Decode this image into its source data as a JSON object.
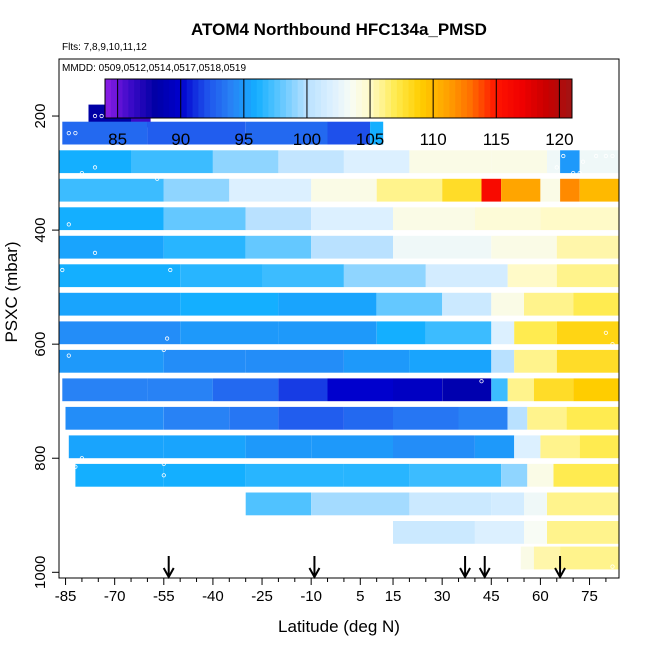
{
  "chart_data": {
    "type": "heatmap",
    "title": "ATOM4 Northbound HFC134a_PMSD",
    "subtitle1": "Flts: 7,8,9,10,11,12",
    "subtitle2": "MMDD: 0509,0512,0514,0517,0518,0519",
    "xlabel": "Latitude (deg N)",
    "ylabel": "PSXC (mbar)",
    "xlim": [
      -87,
      84
    ],
    "ylim": [
      1010,
      100
    ],
    "x_ticks": [
      -85,
      -70,
      -55,
      -40,
      -25,
      -10,
      5,
      15,
      30,
      45,
      60,
      75
    ],
    "y_ticks": [
      200,
      400,
      600,
      800,
      1000
    ],
    "colorbar": {
      "range": [
        84,
        121
      ],
      "ticks": [
        85,
        90,
        95,
        100,
        105,
        110,
        115,
        120
      ]
    },
    "flight_marker_latitudes": [
      -53.5,
      -9,
      37,
      43,
      66
    ],
    "rows": [
      {
        "p": 200,
        "cells": [
          [
            -78,
            -65,
            88
          ],
          [
            -65,
            -59,
            86
          ]
        ]
      },
      {
        "p": 230,
        "cells": [
          [
            -86,
            -60,
            93
          ],
          [
            -60,
            -30,
            92.5
          ],
          [
            -30,
            -5,
            93
          ],
          [
            -5,
            8,
            92
          ],
          [
            8,
            12,
            96
          ]
        ]
      },
      {
        "p": 280,
        "cells": [
          [
            -87,
            -65,
            96
          ],
          [
            -65,
            -40,
            97
          ],
          [
            -40,
            -20,
            99
          ],
          [
            -20,
            0,
            100.5
          ],
          [
            0,
            20,
            102
          ],
          [
            20,
            45,
            104
          ],
          [
            45,
            62,
            104
          ],
          [
            62,
            66,
            103
          ],
          [
            66,
            72,
            95
          ],
          [
            72,
            84,
            103
          ]
        ]
      },
      {
        "p": 330,
        "cells": [
          [
            -87,
            -55,
            97
          ],
          [
            -55,
            -35,
            99
          ],
          [
            -35,
            -10,
            102
          ],
          [
            -10,
            10,
            104
          ],
          [
            10,
            30,
            106
          ],
          [
            30,
            42,
            108
          ],
          [
            42,
            48,
            116
          ],
          [
            48,
            60,
            111
          ],
          [
            60,
            66,
            104
          ],
          [
            66,
            72,
            112
          ],
          [
            72,
            84,
            110
          ]
        ]
      },
      {
        "p": 380,
        "cells": [
          [
            -87,
            -55,
            96
          ],
          [
            -55,
            -30,
            98
          ],
          [
            -30,
            -10,
            100
          ],
          [
            -10,
            15,
            102
          ],
          [
            15,
            40,
            104
          ],
          [
            40,
            60,
            104.5
          ],
          [
            60,
            84,
            105
          ]
        ]
      },
      {
        "p": 430,
        "cells": [
          [
            -87,
            -55,
            95.5
          ],
          [
            -55,
            -30,
            96.5
          ],
          [
            -30,
            -10,
            98
          ],
          [
            -10,
            15,
            100
          ],
          [
            15,
            45,
            103
          ],
          [
            45,
            65,
            104
          ],
          [
            65,
            84,
            105.5
          ]
        ]
      },
      {
        "p": 480,
        "cells": [
          [
            -87,
            -50,
            96
          ],
          [
            -50,
            -25,
            96.5
          ],
          [
            -25,
            0,
            97
          ],
          [
            0,
            25,
            99
          ],
          [
            25,
            50,
            101.5
          ],
          [
            50,
            65,
            105
          ],
          [
            65,
            84,
            106
          ]
        ]
      },
      {
        "p": 530,
        "cells": [
          [
            -87,
            -50,
            95.5
          ],
          [
            -50,
            -20,
            96
          ],
          [
            -20,
            10,
            95.5
          ],
          [
            10,
            30,
            98
          ],
          [
            30,
            45,
            101
          ],
          [
            45,
            55,
            104
          ],
          [
            55,
            70,
            106
          ],
          [
            70,
            84,
            107
          ]
        ]
      },
      {
        "p": 580,
        "cells": [
          [
            -87,
            -50,
            94.5
          ],
          [
            -50,
            -20,
            95
          ],
          [
            -20,
            10,
            95
          ],
          [
            10,
            25,
            96
          ],
          [
            25,
            45,
            97
          ],
          [
            45,
            52,
            102
          ],
          [
            52,
            65,
            107
          ],
          [
            65,
            84,
            108.5
          ]
        ]
      },
      {
        "p": 630,
        "cells": [
          [
            -87,
            -55,
            95
          ],
          [
            -55,
            -30,
            94.5
          ],
          [
            -30,
            0,
            94.5
          ],
          [
            0,
            20,
            95
          ],
          [
            20,
            45,
            95.5
          ],
          [
            45,
            52,
            100
          ],
          [
            52,
            65,
            106
          ],
          [
            65,
            84,
            108
          ]
        ]
      },
      {
        "p": 680,
        "cells": [
          [
            -86,
            -60,
            94
          ],
          [
            -60,
            -40,
            94
          ],
          [
            -40,
            -20,
            93
          ],
          [
            -20,
            -5,
            91.5
          ],
          [
            -5,
            15,
            90
          ],
          [
            15,
            30,
            89.5
          ],
          [
            30,
            45,
            88.5
          ],
          [
            45,
            50,
            97
          ],
          [
            50,
            58,
            106
          ],
          [
            58,
            70,
            108
          ],
          [
            70,
            84,
            109
          ]
        ]
      },
      {
        "p": 730,
        "cells": [
          [
            -85,
            -55,
            94.5
          ],
          [
            -55,
            -35,
            94
          ],
          [
            -35,
            -20,
            93.5
          ],
          [
            -20,
            0,
            92.5
          ],
          [
            0,
            15,
            93
          ],
          [
            15,
            35,
            93.5
          ],
          [
            35,
            50,
            94
          ],
          [
            50,
            56,
            100
          ],
          [
            56,
            68,
            106
          ],
          [
            68,
            84,
            107
          ]
        ]
      },
      {
        "p": 780,
        "cells": [
          [
            -84,
            -55,
            95.5
          ],
          [
            -55,
            -30,
            95.5
          ],
          [
            -30,
            -10,
            95
          ],
          [
            -10,
            15,
            95
          ],
          [
            15,
            40,
            94.5
          ],
          [
            40,
            52,
            95
          ],
          [
            52,
            60,
            102
          ],
          [
            60,
            72,
            106
          ],
          [
            72,
            84,
            107
          ]
        ]
      },
      {
        "p": 830,
        "cells": [
          [
            -82,
            -55,
            96
          ],
          [
            -55,
            -30,
            96
          ],
          [
            -30,
            0,
            96.5
          ],
          [
            0,
            20,
            96.5
          ],
          [
            20,
            48,
            97
          ],
          [
            48,
            56,
            99
          ],
          [
            56,
            64,
            104
          ],
          [
            64,
            84,
            107
          ]
        ]
      },
      {
        "p": 880,
        "cells": [
          [
            -30,
            -10,
            97.5
          ],
          [
            -10,
            20,
            99.5
          ],
          [
            20,
            45,
            101
          ],
          [
            45,
            55,
            101.5
          ],
          [
            55,
            62,
            103
          ],
          [
            62,
            84,
            106
          ]
        ]
      },
      {
        "p": 930,
        "cells": [
          [
            15,
            40,
            101
          ],
          [
            40,
            55,
            102
          ],
          [
            55,
            62,
            103.5
          ],
          [
            62,
            84,
            106
          ]
        ]
      },
      {
        "p": 975,
        "cells": [
          [
            54,
            58,
            104
          ],
          [
            58,
            66,
            105.5
          ],
          [
            66,
            84,
            106
          ]
        ]
      }
    ]
  }
}
